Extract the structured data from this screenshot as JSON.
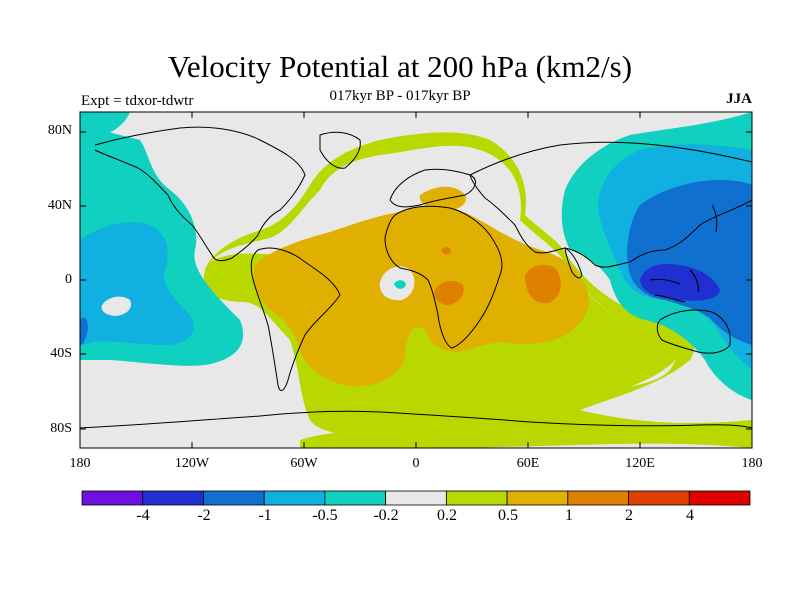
{
  "title": "Velocity Potential at 200 hPa (km2/s)",
  "subtitle": "017kyr BP - 017kyr BP",
  "experiment": "Expt = tdxor-tdwtr",
  "season": "JJA",
  "lat_labels": [
    "80N",
    "40N",
    "0",
    "40S",
    "80S"
  ],
  "lon_labels": [
    "180",
    "120W",
    "60W",
    "0",
    "60E",
    "120E",
    "180"
  ],
  "colorbar": {
    "colors": [
      "#7010e0",
      "#2030d0",
      "#1070d0",
      "#10b0e0",
      "#10d0c0",
      "#e8e8e8",
      "#b8d800",
      "#e0b000",
      "#e08000",
      "#e04000",
      "#e00000"
    ],
    "labels": [
      "-4",
      "-2",
      "-1",
      "-0.5",
      "-0.2",
      "0.2",
      "0.5",
      "1",
      "2",
      "4"
    ]
  },
  "field_colors": {
    "land_outline": "#000000",
    "background": "#e8e8e8"
  }
}
